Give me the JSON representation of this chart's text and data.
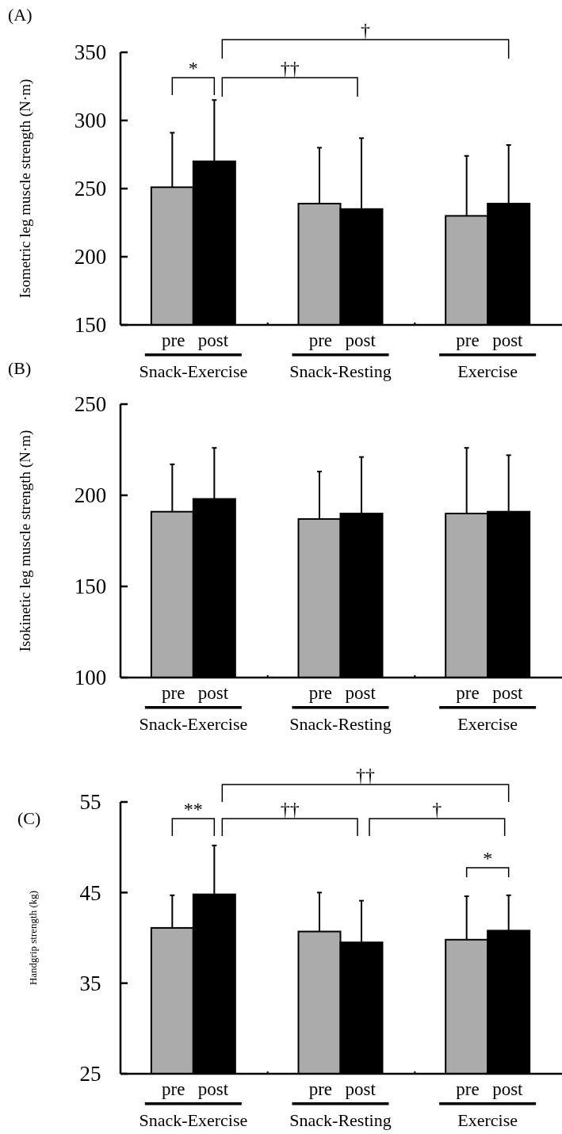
{
  "chart_data": [
    {
      "type": "bar",
      "title": "(A)",
      "ylabel": "Isometric leg muscle strength (N·m)",
      "categories": [
        "Snack-Exercise",
        "Snack-Resting",
        "Exercise"
      ],
      "series": [
        {
          "name": "pre",
          "color": "#ababab",
          "values": [
            251,
            239,
            230
          ],
          "errors": [
            40,
            41,
            44
          ]
        },
        {
          "name": "post",
          "color": "#000000",
          "values": [
            270,
            235,
            239
          ],
          "errors": [
            45,
            52,
            43
          ]
        }
      ],
      "ylim": [
        150,
        350
      ],
      "yticks": [
        150,
        200,
        250,
        300,
        350
      ],
      "grid": false,
      "annotations": [
        "*",
        "††",
        "†"
      ]
    },
    {
      "type": "bar",
      "title": "(B)",
      "ylabel": "Isokinetic leg muscle strength (N·m)",
      "categories": [
        "Snack-Exercise",
        "Snack-Resting",
        "Exercise"
      ],
      "series": [
        {
          "name": "pre",
          "color": "#ababab",
          "values": [
            191,
            187,
            190
          ],
          "errors": [
            26,
            26,
            36
          ]
        },
        {
          "name": "post",
          "color": "#000000",
          "values": [
            198,
            190,
            191
          ],
          "errors": [
            28,
            31,
            31
          ]
        }
      ],
      "ylim": [
        100,
        250
      ],
      "yticks": [
        100,
        150,
        200,
        250
      ],
      "grid": false
    },
    {
      "type": "bar",
      "title": "(C)",
      "ylabel": "Handgrip strength (kg)",
      "categories": [
        "Snack-Exercise",
        "Snack-Resting",
        "Exercise"
      ],
      "series": [
        {
          "name": "pre",
          "color": "#ababab",
          "values": [
            41.1,
            40.7,
            39.8
          ],
          "errors": [
            3.6,
            4.3,
            4.8
          ]
        },
        {
          "name": "post",
          "color": "#000000",
          "values": [
            44.8,
            39.5,
            40.8
          ],
          "errors": [
            5.4,
            4.6,
            3.9
          ]
        }
      ],
      "ylim": [
        25,
        55
      ],
      "yticks": [
        25,
        35,
        45,
        55
      ],
      "grid": false,
      "annotations": [
        "**",
        "††",
        "†",
        "††",
        "*"
      ]
    }
  ]
}
